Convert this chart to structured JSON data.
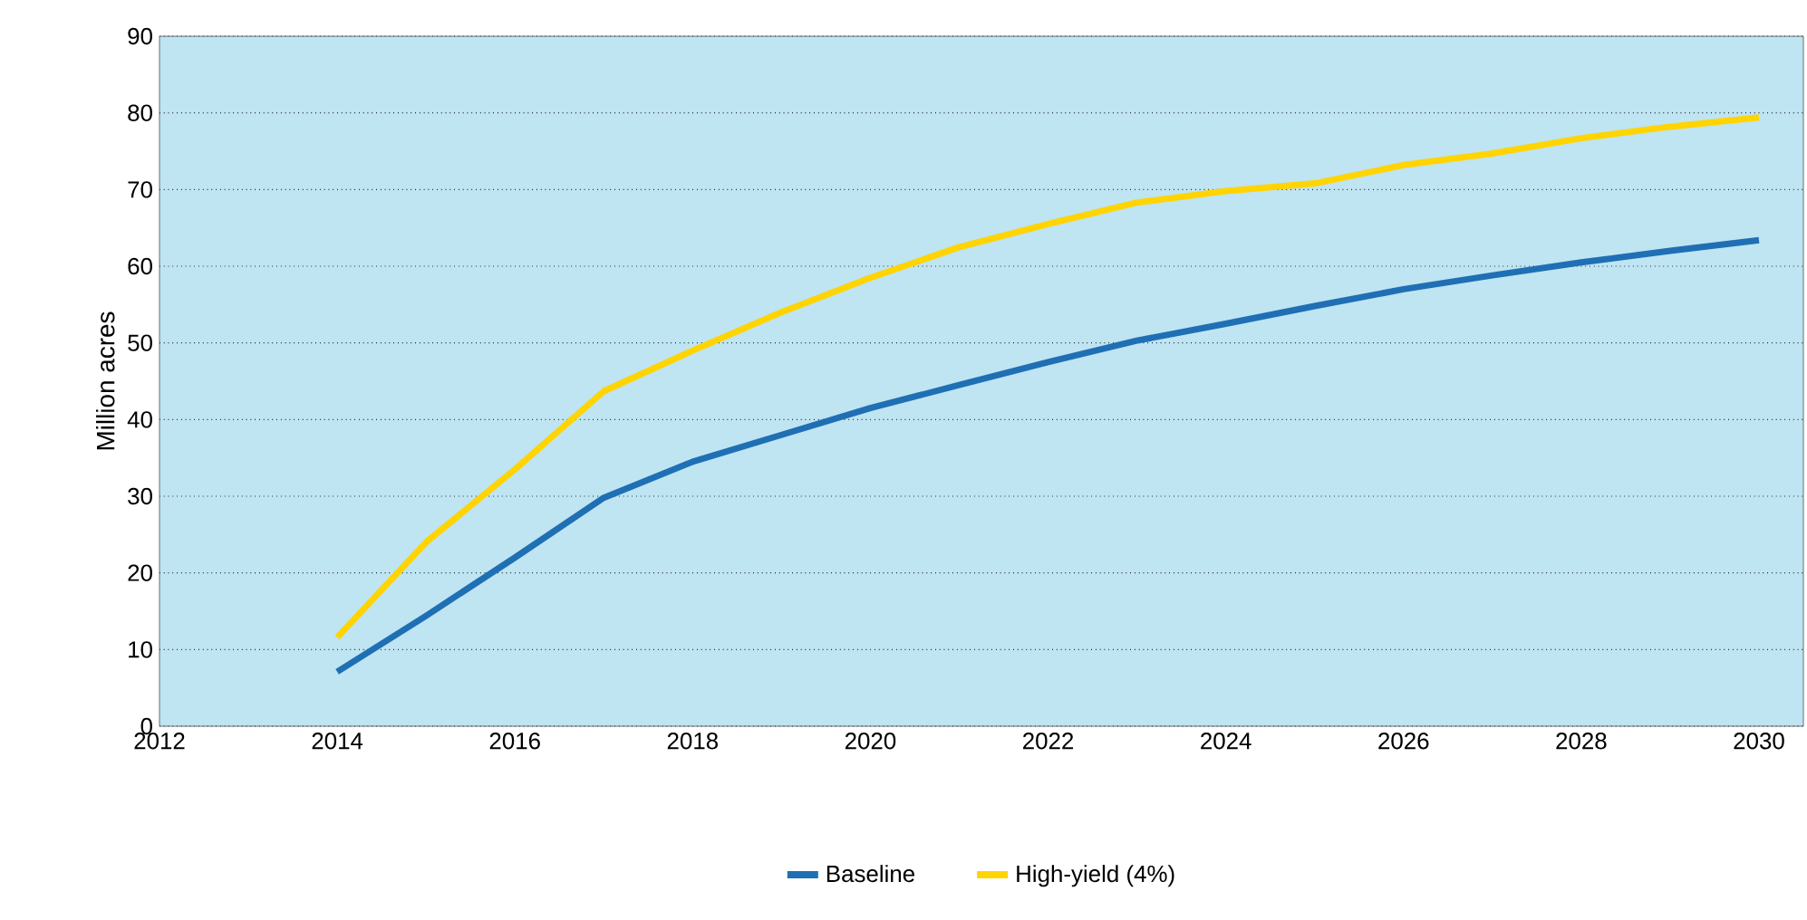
{
  "chart_data": {
    "type": "line",
    "ylabel": "Million acres",
    "x": [
      2014,
      2015,
      2016,
      2017,
      2018,
      2019,
      2020,
      2021,
      2022,
      2023,
      2024,
      2025,
      2026,
      2027,
      2028,
      2029,
      2030
    ],
    "series": [
      {
        "name": "Baseline",
        "color": "#1f6fb4",
        "values": [
          7.1,
          14.4,
          22,
          29.8,
          34.5,
          38,
          41.5,
          44.5,
          47.5,
          50.3,
          52.5,
          54.8,
          57,
          58.8,
          60.5,
          62,
          63.4
        ]
      },
      {
        "name": "High-yield (4%)",
        "color": "#ffd400",
        "values": [
          11.6,
          24,
          33.5,
          43.7,
          49,
          54,
          58.5,
          62.5,
          65.5,
          68.3,
          69.8,
          70.8,
          73.2,
          74.7,
          76.7,
          78.2,
          79.4
        ]
      }
    ],
    "xlim": [
      2012,
      2030.5
    ],
    "ylim": [
      0,
      90
    ],
    "xticks": [
      2012,
      2014,
      2016,
      2018,
      2020,
      2022,
      2024,
      2026,
      2028,
      2030
    ],
    "yticks": [
      0,
      10,
      20,
      30,
      40,
      50,
      60,
      70,
      80,
      90
    ],
    "grid": "y",
    "legend": "bottom",
    "marker": "none",
    "line_style": "solid"
  }
}
